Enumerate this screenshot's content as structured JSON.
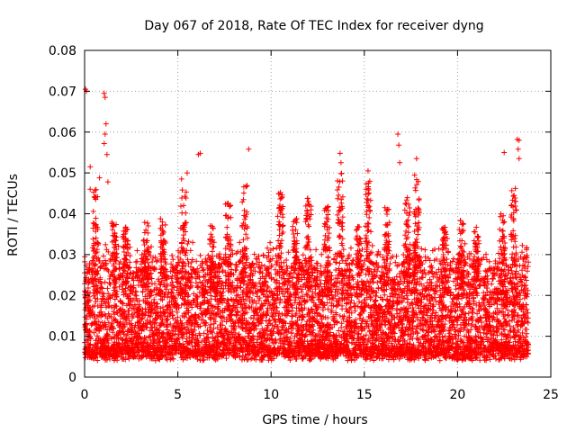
{
  "chart_data": {
    "type": "scatter",
    "title": "Day 067 of 2018, Rate Of TEC Index for receiver dyng",
    "xlabel": "GPS time / hours",
    "ylabel": "ROTI / TECUs",
    "xlim": [
      0,
      25
    ],
    "ylim": [
      0,
      0.08
    ],
    "x_ticks": [
      0,
      5,
      10,
      15,
      20,
      25
    ],
    "x_tick_labels": [
      "0",
      "5",
      "10",
      "15",
      "20",
      "25"
    ],
    "y_ticks": [
      0,
      0.01,
      0.02,
      0.03,
      0.04,
      0.05,
      0.06,
      0.07,
      0.08
    ],
    "y_tick_labels": [
      "0",
      "0.01",
      "0.02",
      "0.03",
      "0.04",
      "0.05",
      "0.06",
      "0.07",
      "0.08"
    ],
    "grid": true,
    "marker": "+",
    "color": "#ff0000",
    "series": [
      {
        "name": "ROTI",
        "description": "Dense cloud of ROTI samples (~0.003-0.03 TECU/s) from 0 to ~23.8 h with scattered spikes",
        "baseline_range": [
          0.003,
          0.03
        ],
        "x_range": [
          0,
          23.8
        ],
        "notable_points": [
          {
            "x": 0.05,
            "y": 0.0705
          },
          {
            "x": 0.1,
            "y": 0.07
          },
          {
            "x": 0.3,
            "y": 0.0515
          },
          {
            "x": 0.3,
            "y": 0.046
          },
          {
            "x": 0.8,
            "y": 0.0488
          },
          {
            "x": 1.05,
            "y": 0.0695
          },
          {
            "x": 1.1,
            "y": 0.0685
          },
          {
            "x": 1.15,
            "y": 0.062
          },
          {
            "x": 1.1,
            "y": 0.0595
          },
          {
            "x": 1.05,
            "y": 0.0572
          },
          {
            "x": 1.2,
            "y": 0.0545
          },
          {
            "x": 1.25,
            "y": 0.0478
          },
          {
            "x": 5.2,
            "y": 0.0485
          },
          {
            "x": 5.5,
            "y": 0.05
          },
          {
            "x": 6.1,
            "y": 0.0545
          },
          {
            "x": 6.2,
            "y": 0.0548
          },
          {
            "x": 8.8,
            "y": 0.0558
          },
          {
            "x": 10.5,
            "y": 0.0452
          },
          {
            "x": 13.7,
            "y": 0.0548
          },
          {
            "x": 13.75,
            "y": 0.0525
          },
          {
            "x": 15.2,
            "y": 0.0505
          },
          {
            "x": 16.8,
            "y": 0.0595
          },
          {
            "x": 16.85,
            "y": 0.0568
          },
          {
            "x": 16.9,
            "y": 0.0525
          },
          {
            "x": 17.8,
            "y": 0.0535
          },
          {
            "x": 22.5,
            "y": 0.055
          },
          {
            "x": 23.2,
            "y": 0.0582
          },
          {
            "x": 23.3,
            "y": 0.058
          },
          {
            "x": 23.25,
            "y": 0.0558
          },
          {
            "x": 23.3,
            "y": 0.0535
          },
          {
            "x": 23.1,
            "y": 0.0462
          }
        ],
        "peak_clusters": [
          {
            "x": 0.6,
            "top": 0.046
          },
          {
            "x": 1.6,
            "top": 0.038
          },
          {
            "x": 2.2,
            "top": 0.037
          },
          {
            "x": 3.3,
            "top": 0.038
          },
          {
            "x": 4.2,
            "top": 0.039
          },
          {
            "x": 5.3,
            "top": 0.046
          },
          {
            "x": 6.8,
            "top": 0.038
          },
          {
            "x": 7.7,
            "top": 0.043
          },
          {
            "x": 8.6,
            "top": 0.047
          },
          {
            "x": 10.5,
            "top": 0.045
          },
          {
            "x": 11.3,
            "top": 0.039
          },
          {
            "x": 12.0,
            "top": 0.044
          },
          {
            "x": 13.0,
            "top": 0.042
          },
          {
            "x": 13.7,
            "top": 0.05
          },
          {
            "x": 14.7,
            "top": 0.037
          },
          {
            "x": 15.2,
            "top": 0.049
          },
          {
            "x": 16.2,
            "top": 0.042
          },
          {
            "x": 17.3,
            "top": 0.044
          },
          {
            "x": 17.8,
            "top": 0.05
          },
          {
            "x": 19.3,
            "top": 0.037
          },
          {
            "x": 20.2,
            "top": 0.039
          },
          {
            "x": 21.0,
            "top": 0.037
          },
          {
            "x": 22.4,
            "top": 0.04
          },
          {
            "x": 23.0,
            "top": 0.046
          }
        ]
      }
    ]
  }
}
